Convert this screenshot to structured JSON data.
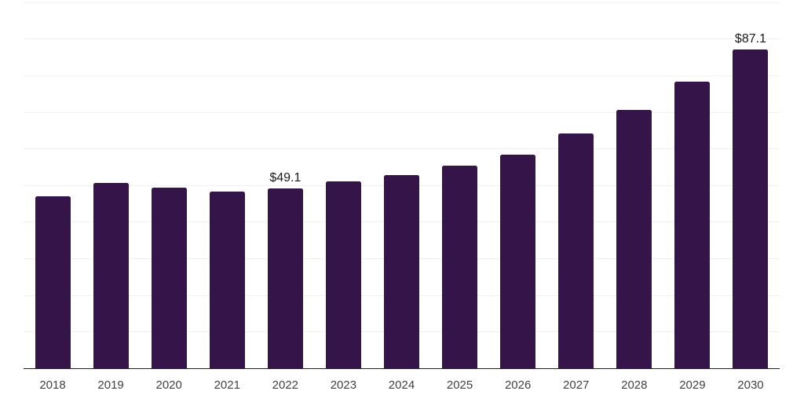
{
  "chart_data": {
    "type": "bar",
    "title": "",
    "xlabel": "",
    "ylabel": "",
    "categories": [
      "2018",
      "2019",
      "2020",
      "2021",
      "2022",
      "2023",
      "2024",
      "2025",
      "2026",
      "2027",
      "2028",
      "2029",
      "2030"
    ],
    "values": [
      47.0,
      50.6,
      49.3,
      48.2,
      49.1,
      51.1,
      52.8,
      55.3,
      58.4,
      64.1,
      70.5,
      78.3,
      87.1
    ],
    "data_labels": [
      {
        "category": "2022",
        "text": "$49.1"
      },
      {
        "category": "2030",
        "text": "$87.1"
      }
    ],
    "ylim": [
      0,
      100
    ],
    "grid": true,
    "grid_step": 10,
    "y_tick_labels_visible": false,
    "legend": false
  },
  "style": {
    "bar_color": "#351549",
    "gridline_color": "#f1f1f4",
    "axis_line_color": "#212121",
    "tick_label_color": "#424242",
    "data_label_color": "#1a1a1a",
    "background_color": "#ffffff"
  }
}
